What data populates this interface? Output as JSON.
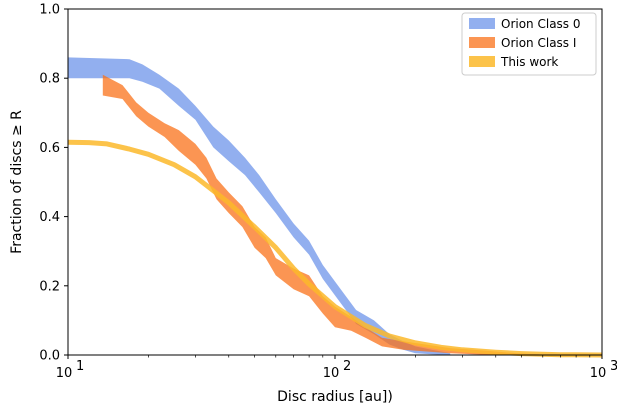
{
  "chart_data": {
    "type": "area",
    "xscale": "log",
    "xlim": [
      10,
      1000
    ],
    "ylim": [
      0,
      1.0
    ],
    "xlabel": "Disc radius [au])",
    "ylabel": "Fraction of discs ≥ R",
    "grid": false,
    "legend_position": "top-right",
    "x_ticks": [
      {
        "value": 10,
        "base": "10",
        "exp": "1"
      },
      {
        "value": 100,
        "base": "10",
        "exp": "2"
      },
      {
        "value": 1000,
        "base": "10",
        "exp": "3"
      }
    ],
    "y_ticks": [
      {
        "value": 0.0,
        "label": "0.0"
      },
      {
        "value": 0.2,
        "label": "0.2"
      },
      {
        "value": 0.4,
        "label": "0.4"
      },
      {
        "value": 0.6,
        "label": "0.6"
      },
      {
        "value": 0.8,
        "label": "0.8"
      },
      {
        "value": 1.0,
        "label": "1.0"
      }
    ],
    "series": [
      {
        "name": "Orion Class 0",
        "kind": "band",
        "color": "#6d94ea",
        "opacity": 0.75,
        "x": [
          10,
          17,
          19,
          22,
          26,
          30,
          35,
          40,
          46,
          52,
          60,
          70,
          80,
          90,
          105,
          120,
          140,
          160,
          180,
          200,
          230,
          270
        ],
        "upper": [
          0.86,
          0.855,
          0.84,
          0.81,
          0.77,
          0.72,
          0.66,
          0.62,
          0.57,
          0.52,
          0.45,
          0.38,
          0.33,
          0.26,
          0.19,
          0.13,
          0.1,
          0.06,
          0.04,
          0.025,
          0.015,
          0.005
        ],
        "lower": [
          0.8,
          0.8,
          0.79,
          0.77,
          0.72,
          0.68,
          0.6,
          0.56,
          0.52,
          0.47,
          0.41,
          0.34,
          0.29,
          0.22,
          0.15,
          0.09,
          0.06,
          0.03,
          0.015,
          0.005,
          0.002,
          0.0
        ]
      },
      {
        "name": "Orion Class I",
        "kind": "band",
        "color": "#f9711a",
        "opacity": 0.75,
        "x": [
          13.5,
          16,
          18,
          20,
          23,
          26,
          30,
          33,
          36,
          40,
          45,
          50,
          55,
          60,
          70,
          80,
          90,
          100,
          115,
          130,
          150,
          180,
          220,
          270,
          330,
          400,
          480,
          580
        ],
        "upper": [
          0.81,
          0.78,
          0.73,
          0.7,
          0.67,
          0.65,
          0.61,
          0.57,
          0.51,
          0.47,
          0.43,
          0.37,
          0.34,
          0.28,
          0.25,
          0.23,
          0.17,
          0.14,
          0.11,
          0.08,
          0.05,
          0.04,
          0.03,
          0.02,
          0.015,
          0.01,
          0.005,
          0.002
        ],
        "lower": [
          0.75,
          0.74,
          0.69,
          0.66,
          0.63,
          0.59,
          0.55,
          0.51,
          0.45,
          0.41,
          0.37,
          0.31,
          0.28,
          0.23,
          0.19,
          0.17,
          0.12,
          0.08,
          0.07,
          0.05,
          0.025,
          0.015,
          0.01,
          0.005,
          0.002,
          0.0,
          0.0,
          0.0
        ]
      },
      {
        "name": "This work",
        "kind": "line",
        "color": "#fbb92a",
        "opacity": 0.85,
        "x": [
          10,
          12,
          14,
          17,
          20,
          25,
          30,
          35,
          40,
          50,
          60,
          70,
          80,
          100,
          130,
          160,
          200,
          250,
          300,
          400,
          500,
          600,
          700,
          800,
          1000
        ],
        "y": [
          0.615,
          0.614,
          0.61,
          0.595,
          0.58,
          0.55,
          0.515,
          0.475,
          0.44,
          0.37,
          0.31,
          0.25,
          0.205,
          0.14,
          0.085,
          0.055,
          0.035,
          0.022,
          0.015,
          0.008,
          0.004,
          0.002,
          0.001,
          0.0005,
          0.0
        ]
      }
    ]
  }
}
